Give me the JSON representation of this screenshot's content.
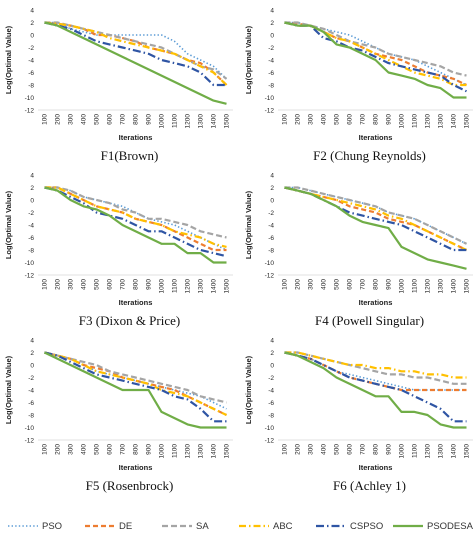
{
  "figure": {
    "x_tick_labels": [
      "100",
      "200",
      "300",
      "400",
      "500",
      "600",
      "700",
      "800",
      "900",
      "1000",
      "1100",
      "1200",
      "1300",
      "1400",
      "1500"
    ],
    "legend_order": [
      "PSO",
      "DE",
      "SA",
      "ABC",
      "CSPSO",
      "PSODESA"
    ]
  },
  "series_styles": {
    "PSO": {
      "color": "#5b9bd5",
      "dash": "1.4,2.2",
      "width": 1.6
    },
    "DE": {
      "color": "#ed7d31",
      "dash": "5,3",
      "width": 2.2
    },
    "SA": {
      "color": "#a5a5a5",
      "dash": "6,3",
      "width": 2.2
    },
    "ABC": {
      "color": "#ffc000",
      "dash": "7,3,1.5,3",
      "width": 2.2
    },
    "CSPSO": {
      "color": "#2f55a4",
      "dash": "8,3,1.5,3",
      "width": 2.2
    },
    "PSODESA": {
      "color": "#70ad47",
      "dash": "",
      "width": 2.2
    }
  },
  "chart_data": [
    {
      "type": "line",
      "title": "F1(Brown)",
      "xlabel": "Iterations",
      "ylabel": "Log(Optimal Value)",
      "ylim": [
        -12,
        4
      ],
      "yticks": [
        4,
        2,
        0,
        -2,
        -4,
        -6,
        -8,
        -10,
        -12
      ],
      "x": [
        100,
        200,
        300,
        400,
        500,
        600,
        700,
        800,
        900,
        1000,
        1100,
        1200,
        1300,
        1400,
        1500
      ],
      "series": [
        {
          "name": "PSO",
          "values": [
            2,
            2,
            1,
            0.5,
            0,
            0,
            0,
            0,
            0,
            0,
            -1,
            -3,
            -4,
            -5,
            -7
          ]
        },
        {
          "name": "DE",
          "values": [
            2,
            1.8,
            1.5,
            1,
            0,
            0,
            -0.5,
            -1,
            -2,
            -2.5,
            -3,
            -4,
            -4.5,
            -6,
            -8
          ]
        },
        {
          "name": "SA",
          "values": [
            2,
            2,
            1.5,
            1,
            0.5,
            0,
            -0.5,
            -1,
            -1.5,
            -2,
            -3,
            -4,
            -5,
            -5.5,
            -7
          ]
        },
        {
          "name": "ABC",
          "values": [
            2,
            1.8,
            1.5,
            1,
            0.5,
            -0.5,
            -1,
            -1.5,
            -2,
            -2.5,
            -3,
            -4,
            -5,
            -6,
            -8
          ]
        },
        {
          "name": "CSPSO",
          "values": [
            2,
            1.5,
            1,
            0,
            -1,
            -1.5,
            -2,
            -2.5,
            -3,
            -4,
            -4.5,
            -5,
            -6,
            -8,
            -8
          ]
        },
        {
          "name": "PSODESA",
          "values": [
            2,
            1.5,
            0.5,
            -0.5,
            -1.5,
            -2.5,
            -3.5,
            -4.5,
            -5.5,
            -6.5,
            -7.5,
            -8.5,
            -9.5,
            -10.5,
            -11
          ]
        }
      ]
    },
    {
      "type": "line",
      "title": "F2 (Chung Reynolds)",
      "xlabel": "Iterations",
      "ylabel": "Log(Optimal Value)",
      "ylim": [
        -12,
        4
      ],
      "yticks": [
        4,
        2,
        0,
        -2,
        -4,
        -6,
        -8,
        -10,
        -12
      ],
      "x": [
        100,
        200,
        300,
        400,
        500,
        600,
        700,
        800,
        900,
        1000,
        1100,
        1200,
        1300,
        1400,
        1500
      ],
      "series": [
        {
          "name": "PSO",
          "values": [
            2,
            2,
            1.5,
            1,
            0.5,
            0,
            -1,
            -2,
            -3,
            -3.5,
            -4,
            -5,
            -6,
            -7,
            -8
          ]
        },
        {
          "name": "DE",
          "values": [
            2,
            1.8,
            1.5,
            0.5,
            -0.5,
            -1,
            -2,
            -3,
            -3.5,
            -4,
            -5,
            -6,
            -6.5,
            -7,
            -8
          ]
        },
        {
          "name": "SA",
          "values": [
            2,
            2,
            1.5,
            1,
            0,
            -1,
            -1.5,
            -2,
            -3,
            -3.5,
            -4,
            -4.5,
            -5,
            -6,
            -6.5
          ]
        },
        {
          "name": "ABC",
          "values": [
            2,
            1.5,
            1.5,
            0.5,
            -0.5,
            -1,
            -2,
            -3,
            -4,
            -5,
            -6,
            -6.5,
            -7,
            -8,
            -8
          ]
        },
        {
          "name": "CSPSO",
          "values": [
            2,
            1.5,
            1.5,
            -0.5,
            -1,
            -2,
            -2.5,
            -3.5,
            -4.5,
            -5,
            -5.5,
            -6,
            -6.5,
            -8,
            -9
          ]
        },
        {
          "name": "PSODESA",
          "values": [
            2,
            1.5,
            1.5,
            0.5,
            -1.5,
            -2,
            -3,
            -4,
            -6,
            -6.5,
            -7,
            -8,
            -8.5,
            -10,
            -10
          ]
        }
      ]
    },
    {
      "type": "line",
      "title": "F3 (Dixon & Price)",
      "xlabel": "Iterations",
      "ylabel": "Log(Optimal Value)",
      "ylim": [
        -12,
        4
      ],
      "yticks": [
        4,
        2,
        0,
        -2,
        -4,
        -6,
        -8,
        -10,
        -12
      ],
      "x": [
        100,
        200,
        300,
        400,
        500,
        600,
        700,
        800,
        900,
        1000,
        1100,
        1200,
        1300,
        1400,
        1500
      ],
      "series": [
        {
          "name": "PSO",
          "values": [
            2,
            2,
            1.5,
            0.5,
            0,
            -0.5,
            -1,
            -2,
            -3,
            -3.5,
            -4,
            -5,
            -6,
            -7,
            -8
          ]
        },
        {
          "name": "DE",
          "values": [
            2,
            2,
            1,
            0,
            -1,
            -1.5,
            -2,
            -3,
            -3.5,
            -4,
            -5,
            -6,
            -7,
            -8,
            -8
          ]
        },
        {
          "name": "SA",
          "values": [
            2,
            2,
            1.5,
            0.5,
            0,
            -0.5,
            -1.5,
            -2,
            -3,
            -3,
            -3.5,
            -4,
            -5,
            -5.5,
            -6
          ]
        },
        {
          "name": "ABC",
          "values": [
            2,
            2,
            1,
            0,
            -1,
            -1.5,
            -2,
            -3,
            -3.5,
            -4,
            -5,
            -5.5,
            -6,
            -7,
            -7.5
          ]
        },
        {
          "name": "CSPSO",
          "values": [
            2,
            1.5,
            0.5,
            -0.5,
            -2,
            -2.5,
            -3,
            -4,
            -5,
            -5,
            -6,
            -7,
            -8,
            -8.5,
            -9
          ]
        },
        {
          "name": "PSODESA",
          "values": [
            2,
            1.5,
            0,
            -1,
            -1.5,
            -2.5,
            -4,
            -5,
            -6,
            -7,
            -7,
            -8.5,
            -8.5,
            -10,
            -10
          ]
        }
      ]
    },
    {
      "type": "line",
      "title": "F4 (Powell Singular)",
      "xlabel": "Iterations",
      "ylabel": "Log(Optimal Value)",
      "ylim": [
        -12,
        4
      ],
      "yticks": [
        4,
        2,
        0,
        -2,
        -4,
        -6,
        -8,
        -10,
        -12
      ],
      "x": [
        100,
        200,
        300,
        400,
        500,
        600,
        700,
        800,
        900,
        1000,
        1100,
        1200,
        1300,
        1400,
        1500
      ],
      "series": [
        {
          "name": "PSO",
          "values": [
            2,
            2,
            1.5,
            1,
            0.5,
            0,
            -0.5,
            -1,
            -2,
            -2.5,
            -3,
            -4,
            -5,
            -6,
            -7
          ]
        },
        {
          "name": "DE",
          "values": [
            2,
            1.5,
            1,
            0.5,
            0,
            -1,
            -1.5,
            -2,
            -3,
            -3.5,
            -4,
            -5,
            -6,
            -7,
            -8
          ]
        },
        {
          "name": "SA",
          "values": [
            2,
            2,
            1.5,
            1,
            0.5,
            0,
            -0.5,
            -1,
            -2,
            -2.5,
            -3,
            -4,
            -5,
            -6,
            -7
          ]
        },
        {
          "name": "ABC",
          "values": [
            2,
            1.5,
            1,
            0.5,
            0,
            -0.5,
            -1,
            -1.5,
            -2.5,
            -3,
            -4,
            -5,
            -6,
            -7,
            -8
          ]
        },
        {
          "name": "CSPSO",
          "values": [
            2,
            1.5,
            1,
            0,
            -1,
            -2,
            -2.5,
            -3,
            -3.5,
            -4,
            -5,
            -6,
            -7,
            -8,
            -8
          ]
        },
        {
          "name": "PSODESA",
          "values": [
            2,
            1.5,
            1,
            0,
            -1,
            -2.5,
            -3.5,
            -4,
            -4.5,
            -7.5,
            -8.5,
            -9.5,
            -10,
            -10.5,
            -11
          ]
        }
      ]
    },
    {
      "type": "line",
      "title": "F5 (Rosenbrock)",
      "xlabel": "Iterations",
      "ylabel": "Log(Optimal Value)",
      "ylim": [
        -12,
        4
      ],
      "yticks": [
        4,
        2,
        0,
        -2,
        -4,
        -6,
        -8,
        -10,
        -12
      ],
      "x": [
        100,
        200,
        300,
        400,
        500,
        600,
        700,
        800,
        900,
        1000,
        1100,
        1200,
        1300,
        1400,
        1500
      ],
      "series": [
        {
          "name": "PSO",
          "values": [
            2,
            1.5,
            1,
            0,
            -1,
            -1.5,
            -2,
            -2.5,
            -3,
            -3.5,
            -4,
            -4.5,
            -5,
            -6,
            -7
          ]
        },
        {
          "name": "DE",
          "values": [
            2,
            1.5,
            1,
            0,
            -0.5,
            -1,
            -2,
            -2.5,
            -3,
            -3.5,
            -4,
            -5,
            -6,
            -7,
            -8
          ]
        },
        {
          "name": "SA",
          "values": [
            2,
            1.5,
            1,
            0.5,
            0,
            -1,
            -1.5,
            -2,
            -2.5,
            -3,
            -3.5,
            -4,
            -5,
            -5.5,
            -6
          ]
        },
        {
          "name": "ABC",
          "values": [
            2,
            1.5,
            1,
            0,
            -1,
            -1.5,
            -2,
            -2.5,
            -3,
            -4,
            -4.5,
            -5,
            -6,
            -7,
            -8
          ]
        },
        {
          "name": "CSPSO",
          "values": [
            2,
            1.5,
            0.5,
            -0.5,
            -1.5,
            -2,
            -2.5,
            -3,
            -3.5,
            -4,
            -5,
            -5.5,
            -7,
            -9,
            -9
          ]
        },
        {
          "name": "PSODESA",
          "values": [
            2,
            1,
            0,
            -1,
            -2,
            -3,
            -4,
            -4,
            -4,
            -7.5,
            -8.5,
            -9.5,
            -10,
            -10,
            -10
          ]
        }
      ]
    },
    {
      "type": "line",
      "title": "F6 (Achley 1)",
      "xlabel": "Iterations",
      "ylabel": "Log(Optimal Value)",
      "ylim": [
        -12,
        4
      ],
      "yticks": [
        4,
        2,
        0,
        -2,
        -4,
        -6,
        -8,
        -10,
        -12
      ],
      "x": [
        100,
        200,
        300,
        400,
        500,
        600,
        700,
        800,
        900,
        1000,
        1100,
        1200,
        1300,
        1400,
        1500
      ],
      "series": [
        {
          "name": "PSO",
          "values": [
            2,
            1.5,
            1,
            0,
            -1,
            -1.5,
            -2,
            -2.5,
            -3,
            -3.5,
            -4,
            -4,
            -4,
            -4,
            -4
          ]
        },
        {
          "name": "DE",
          "values": [
            2,
            1.5,
            1,
            0,
            -1,
            -2,
            -2.5,
            -3,
            -3.5,
            -4,
            -4,
            -4,
            -4,
            -4,
            -4
          ]
        },
        {
          "name": "SA",
          "values": [
            2,
            2,
            1.5,
            1,
            0.5,
            0,
            -0.5,
            -1,
            -1.5,
            -1.5,
            -2,
            -2,
            -2.5,
            -3,
            -3
          ]
        },
        {
          "name": "ABC",
          "values": [
            2,
            2,
            1.5,
            1,
            0.5,
            0,
            0,
            -0.5,
            -0.5,
            -1,
            -1,
            -1.5,
            -1.5,
            -2,
            -2
          ]
        },
        {
          "name": "CSPSO",
          "values": [
            2,
            1.5,
            1,
            0,
            -1,
            -2,
            -2.5,
            -3,
            -3.5,
            -4,
            -5,
            -6,
            -7,
            -9,
            -9
          ]
        },
        {
          "name": "PSODESA",
          "values": [
            2,
            1.5,
            0.5,
            -0.5,
            -2,
            -3,
            -4,
            -5,
            -5,
            -7.5,
            -7.5,
            -8,
            -9.5,
            -10,
            -10
          ]
        }
      ]
    }
  ]
}
